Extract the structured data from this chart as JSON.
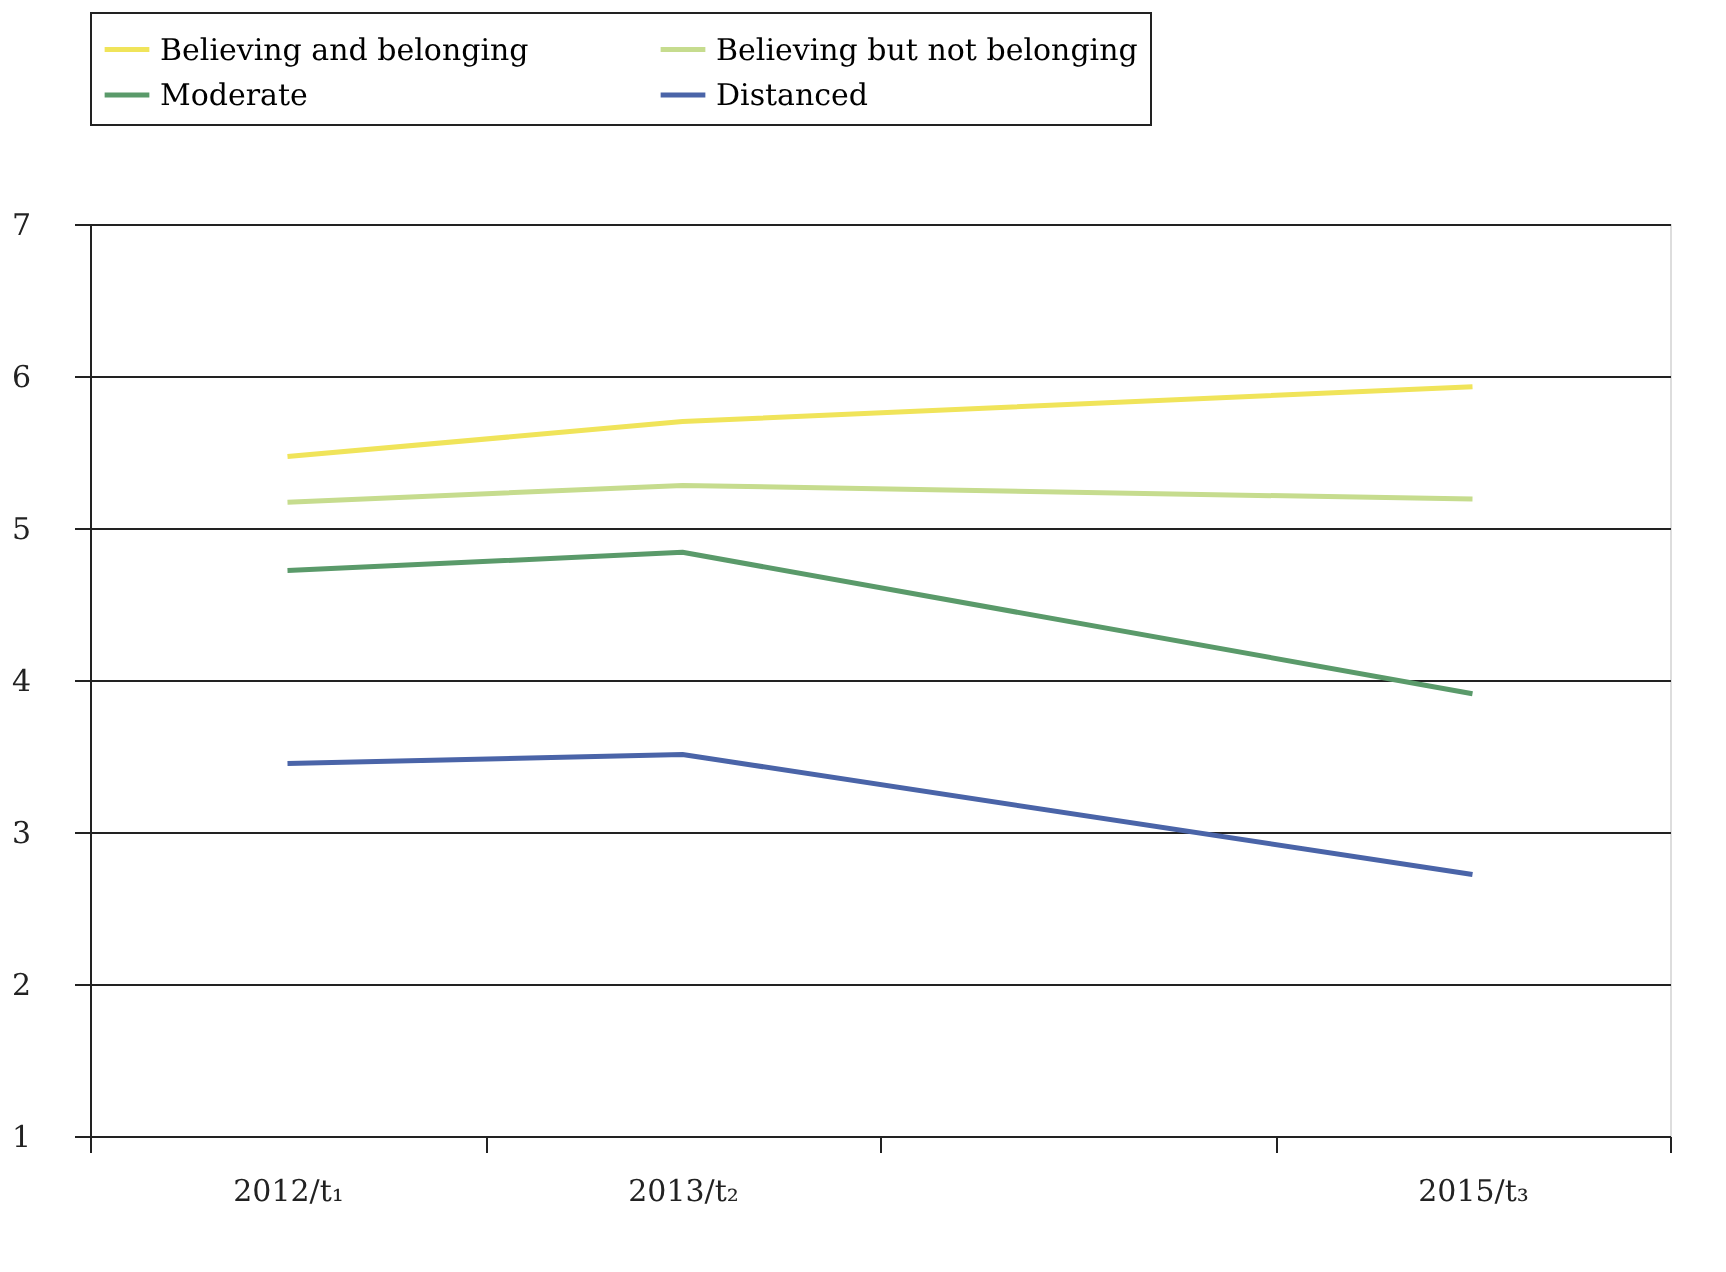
{
  "chart_data": {
    "type": "line",
    "x": [
      2012,
      2013,
      2015
    ],
    "xlim": [
      2011.5,
      2015.5
    ],
    "xticks": [
      {
        "value": 2011.5,
        "label": null
      },
      {
        "value": 2012,
        "label": "2012/t₁"
      },
      {
        "value": 2012.5,
        "label": null
      },
      {
        "value": 2013,
        "label": "2013/t₂"
      },
      {
        "value": 2013.5,
        "label": null
      },
      {
        "value": 2014.5,
        "label": null
      },
      {
        "value": 2015,
        "label": "2015/t₃"
      },
      {
        "value": 2015.5,
        "label": null
      }
    ],
    "ylim": [
      1,
      7
    ],
    "yticks": [
      1,
      2,
      3,
      4,
      5,
      6,
      7
    ],
    "grid": "y",
    "legend": "top",
    "marker": "none",
    "line_style": "solid",
    "series": [
      {
        "name": "Believing and belonging",
        "color": "#f0e45a",
        "values": [
          5.47,
          5.7,
          5.93
        ]
      },
      {
        "name": "Believing but not belonging",
        "color": "#c6dc8e",
        "values": [
          5.17,
          5.28,
          5.19
        ]
      },
      {
        "name": "Moderate",
        "color": "#5a9a6a",
        "values": [
          4.72,
          4.84,
          3.91
        ]
      },
      {
        "name": "Distanced",
        "color": "#4a64a8",
        "values": [
          3.45,
          3.51,
          2.72
        ]
      }
    ]
  }
}
